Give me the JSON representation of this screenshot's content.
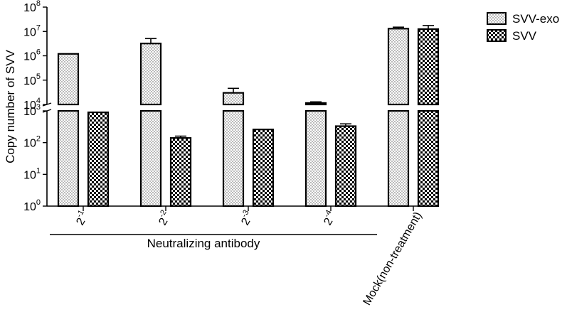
{
  "chart_data": {
    "type": "bar",
    "y_scale": "log10",
    "y_axis_break": "between 10^3 and 10^4",
    "ylim": [
      1,
      100000000
    ],
    "ylabel": "Copy number of SVV",
    "y_ticks": [
      {
        "base": "10",
        "exp": "0",
        "value": 1
      },
      {
        "base": "10",
        "exp": "1",
        "value": 10
      },
      {
        "base": "10",
        "exp": "2",
        "value": 100
      },
      {
        "base": "10",
        "exp": "3",
        "value": 1000
      },
      {
        "base": "10",
        "exp": "4",
        "value": 10000
      },
      {
        "base": "10",
        "exp": "5",
        "value": 100000
      },
      {
        "base": "10",
        "exp": "6",
        "value": 1000000
      },
      {
        "base": "10",
        "exp": "7",
        "value": 10000000
      },
      {
        "base": "10",
        "exp": "8",
        "value": 100000000
      }
    ],
    "categories": [
      {
        "base": "2",
        "exp": "-1"
      },
      {
        "base": "2",
        "exp": "-2"
      },
      {
        "base": "2",
        "exp": "-3"
      },
      {
        "base": "2",
        "exp": "-4"
      },
      {
        "base": "Mock(non-treatment)",
        "exp": ""
      }
    ],
    "group_label": "Neutralizing antibody",
    "series": [
      {
        "name": "SVV-exo",
        "pattern": "dots",
        "values": [
          1200000,
          3200000,
          30000,
          11500,
          13000000
        ],
        "errors": [
          0,
          1900000,
          16000,
          1300,
          2000000
        ]
      },
      {
        "name": "SVV",
        "pattern": "checker",
        "values": [
          900,
          140,
          260,
          330,
          12500000
        ],
        "errors": [
          0,
          20,
          0,
          60,
          5000000
        ]
      }
    ],
    "legend_position": "top-right",
    "grid": false
  }
}
